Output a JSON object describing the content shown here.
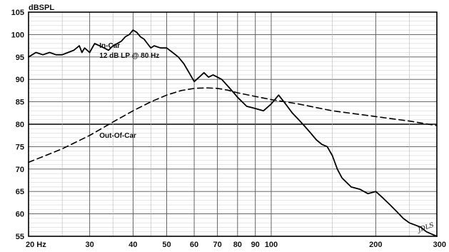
{
  "chart_data": {
    "type": "line",
    "title": "",
    "xlabel": "",
    "ylabel": "dBSPL",
    "x_scale": "log",
    "xlim": [
      20,
      300
    ],
    "ylim": [
      55,
      105
    ],
    "x_ticks": [
      20,
      30,
      40,
      50,
      60,
      70,
      80,
      90,
      100,
      200,
      300
    ],
    "x_tick_labels": [
      "20 Hz",
      "30",
      "40",
      "50",
      "60",
      "70",
      "80",
      "90",
      "100",
      "200",
      "300"
    ],
    "y_ticks": [
      55,
      60,
      65,
      70,
      75,
      80,
      85,
      90,
      95,
      100,
      105
    ],
    "y_tick_labels": [
      "55",
      "60",
      "65",
      "70",
      "75",
      "80",
      "85",
      "90",
      "95",
      "100",
      "105"
    ],
    "minor_x_grid": [
      25,
      35,
      45,
      150,
      250
    ],
    "grid": true,
    "legend": "none",
    "series": [
      {
        "name": "In-Car",
        "style": "solid",
        "color": "#000000",
        "x": [
          20,
          21,
          22,
          23,
          24,
          25,
          26,
          27,
          28,
          28.5,
          29,
          30,
          31,
          32,
          33,
          34,
          35,
          36,
          37,
          38,
          39,
          40,
          41,
          42,
          43,
          44,
          45,
          46,
          48,
          50,
          52,
          54,
          56,
          57,
          58,
          60,
          62,
          64,
          66,
          68,
          70,
          72,
          75,
          78,
          80,
          85,
          90,
          95,
          100,
          105,
          110,
          115,
          120,
          125,
          130,
          135,
          140,
          145,
          150,
          155,
          160,
          170,
          180,
          190,
          200,
          210,
          220,
          230,
          240,
          250,
          260,
          270,
          280,
          290,
          300
        ],
        "y": [
          95,
          96,
          95.5,
          96,
          95.5,
          95.5,
          96,
          96.5,
          97.5,
          96,
          97,
          96,
          98,
          97.5,
          97,
          96.5,
          97.5,
          98,
          98.5,
          99.5,
          100,
          101,
          100.5,
          99.5,
          99,
          98,
          97,
          97.5,
          97,
          97,
          96,
          95,
          93.5,
          92.5,
          91.5,
          89.5,
          90.5,
          91.5,
          90.5,
          91,
          90.5,
          90,
          88.5,
          87,
          86,
          84,
          83.5,
          83,
          84.5,
          86.5,
          84.5,
          82.5,
          81,
          79.5,
          78,
          76.5,
          75.5,
          75,
          73,
          70,
          68,
          66,
          65.5,
          64.5,
          65,
          63.5,
          62,
          60.5,
          59,
          58,
          57.5,
          57,
          56,
          55.5,
          55
        ]
      },
      {
        "name": "Out-Of-Car",
        "style": "dashed",
        "color": "#000000",
        "x": [
          20,
          25,
          30,
          35,
          40,
          45,
          50,
          55,
          60,
          65,
          70,
          75,
          80,
          90,
          100,
          120,
          150,
          200,
          250,
          300
        ],
        "y": [
          71.5,
          74.5,
          77.5,
          80.5,
          83,
          85,
          86.5,
          87.5,
          88,
          88.1,
          88,
          87.6,
          87,
          86.2,
          85.5,
          84.5,
          83,
          81.7,
          80.7,
          79.7
        ]
      }
    ],
    "annotations": [
      {
        "text": "In-Car",
        "x": 32,
        "y": 97
      },
      {
        "text": "12 dB LP @ 80 Hz",
        "x": 32,
        "y": 94.8
      },
      {
        "text": "Out-Of-Car",
        "x": 32,
        "y": 77
      }
    ]
  }
}
